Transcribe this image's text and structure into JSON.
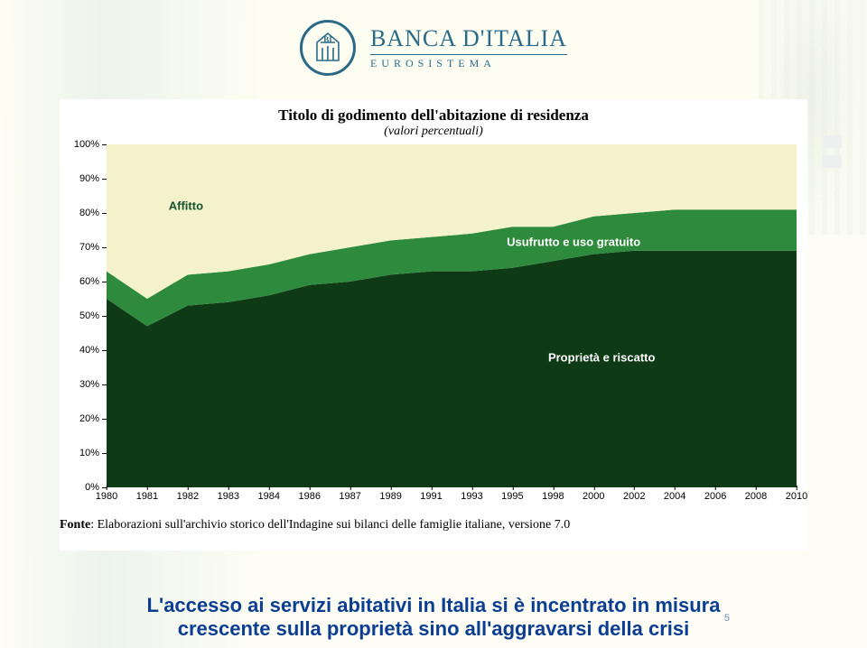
{
  "logo": {
    "main": "BANCA D'ITALIA",
    "sub": "EUROSISTEMA"
  },
  "chart": {
    "type": "area-stacked",
    "title": "Titolo di godimento dell'abitazione di residenza",
    "subtitle": "(valori percentuali)",
    "title_fontsize": 17,
    "subtitle_fontsize": 14,
    "background_color": "#ffffff",
    "plot_background": "#ffffff",
    "ylim": [
      0,
      100
    ],
    "ytick_step": 10,
    "ytick_suffix": "%",
    "x_categories": [
      "1980",
      "1981",
      "1982",
      "1983",
      "1984",
      "1986",
      "1987",
      "1989",
      "1991",
      "1993",
      "1995",
      "1998",
      "2000",
      "2002",
      "2004",
      "2006",
      "2008",
      "2010"
    ],
    "series": [
      {
        "name": "Proprietà e riscatto",
        "label": "Proprietà e riscatto",
        "label_color": "#ffffff",
        "label_pos": {
          "x_pct": 64,
          "y_val": 38
        },
        "color": "#0e3a16",
        "values": [
          55,
          47,
          53,
          54,
          56,
          59,
          60,
          62,
          63,
          63,
          64,
          66,
          68,
          69,
          69,
          69,
          69,
          69
        ]
      },
      {
        "name": "Usufrutto e uso gratuito",
        "label": "Usufrutto e uso gratuito",
        "label_color": "#ffffff",
        "label_pos": {
          "x_pct": 58,
          "y_val": 71.5
        },
        "color": "#2e8b3e",
        "values": [
          8,
          8,
          9,
          9,
          9,
          9,
          10,
          10,
          10,
          11,
          12,
          10,
          11,
          11,
          12,
          12,
          12,
          12
        ]
      },
      {
        "name": "Affitto",
        "label": "Affitto",
        "label_color": "#14532d",
        "label_pos": {
          "x_pct": 9,
          "y_val": 82
        },
        "color": "#f4f2ca",
        "values": [
          37,
          45,
          38,
          37,
          35,
          32,
          30,
          28,
          27,
          26,
          24,
          24,
          21,
          20,
          19,
          19,
          19,
          19
        ]
      }
    ],
    "axis_fontsize": 11,
    "footnote_lead": "Fonte",
    "footnote": "Elaborazioni sull'archivio storico dell'Indagine sui bilanci delle famiglie italiane, versione 7.0",
    "footnote_fontsize": 14
  },
  "caption_line1": "L'accesso ai servizi abitativi in Italia si è incentrato in misura",
  "caption_line2": "crescente sulla proprietà sino all'aggravarsi della crisi",
  "caption_fontsize": 22,
  "page_number": "5"
}
